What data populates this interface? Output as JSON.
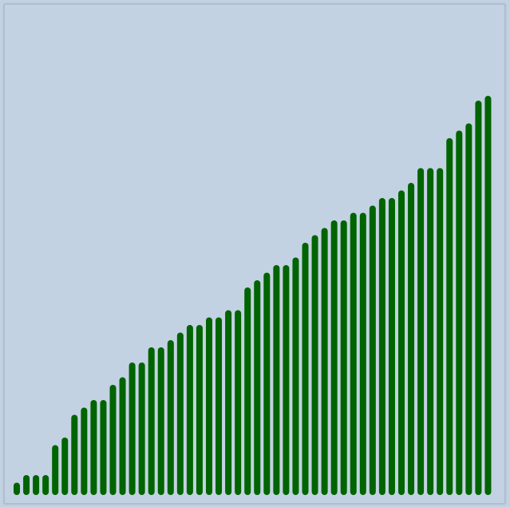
{
  "chart_data": {
    "type": "bar",
    "title": "",
    "xlabel": "",
    "ylabel": "",
    "ylim": [
      0,
      100
    ],
    "bar_color": "#006400",
    "background_color": "#c3d2e2",
    "grid": false,
    "legend": "none",
    "values": [
      3.1,
      5.0,
      5.0,
      5.0,
      12.5,
      14.4,
      20.1,
      21.9,
      23.8,
      23.8,
      27.6,
      29.5,
      33.2,
      33.2,
      37.0,
      37.0,
      38.8,
      40.7,
      42.6,
      42.6,
      44.5,
      44.5,
      46.3,
      46.3,
      52.0,
      53.8,
      55.7,
      57.6,
      57.6,
      59.5,
      63.2,
      65.1,
      66.9,
      68.8,
      68.8,
      70.7,
      70.7,
      72.5,
      74.4,
      74.4,
      76.3,
      78.2,
      81.9,
      81.9,
      81.9,
      89.4,
      91.3,
      93.1,
      98.8,
      100.0
    ]
  }
}
